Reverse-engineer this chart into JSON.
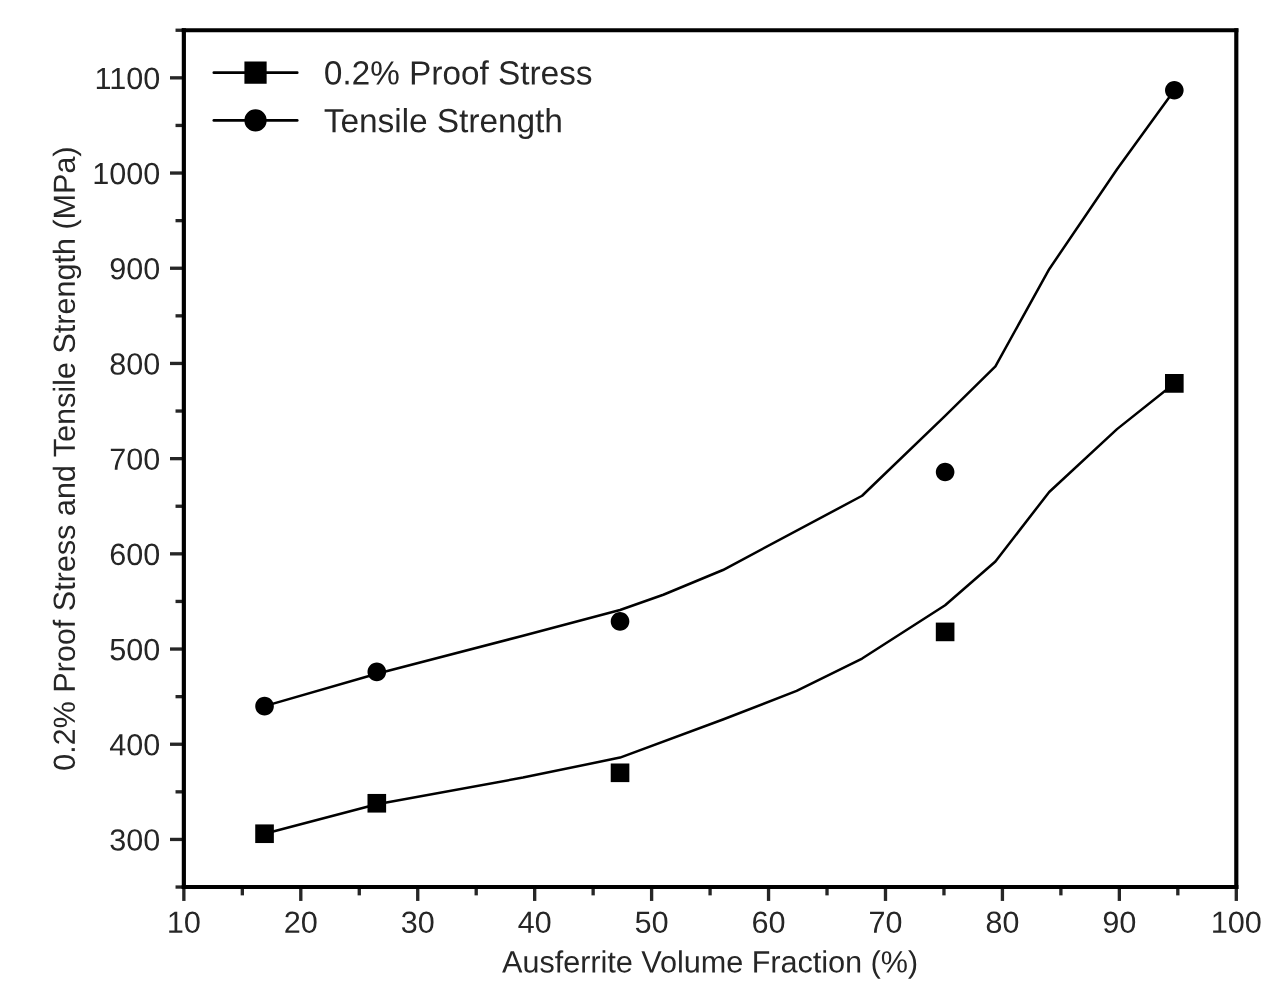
{
  "chart_data": {
    "type": "scatter",
    "xlabel": "Ausferrite Volume Fraction (%)",
    "ylabel": "0.2% Proof Stress and Tensile Strength (MPa)",
    "xlim": [
      10,
      100
    ],
    "xticks": [
      10,
      20,
      30,
      40,
      50,
      60,
      70,
      80,
      90,
      100
    ],
    "ylim": [
      250,
      1150
    ],
    "yticks": [
      300,
      400,
      500,
      600,
      700,
      800,
      900,
      1000,
      1100
    ],
    "grid": false,
    "legend": "top left",
    "series": [
      {
        "name": "0.2% Proof Stress",
        "marker": "square",
        "color": "#000000",
        "x": [
          16.9,
          26.5,
          47.3,
          75.1,
          94.7
        ],
        "values": [
          306,
          338,
          370,
          518,
          779
        ]
      },
      {
        "name": "Tensile Strength",
        "marker": "circle",
        "color": "#000000",
        "x": [
          16.9,
          26.5,
          47.3,
          75.1,
          94.7
        ],
        "values": [
          440,
          476,
          529,
          686,
          1087
        ]
      },
      {
        "type": "line",
        "marker": "none",
        "line_style": "solid",
        "color": "#000000",
        "x": [
          16.9,
          26.5,
          39.0,
          47.3,
          56.1,
          62.4,
          68.0,
          75.1,
          79.4,
          84.0,
          89.8,
          94.7
        ],
        "values": [
          306,
          337,
          365,
          386,
          426,
          456,
          490,
          546,
          592,
          665,
          731,
          779
        ]
      },
      {
        "type": "line",
        "marker": "none",
        "line_style": "solid",
        "color": "#000000",
        "x": [
          16.9,
          26.5,
          39.0,
          47.3,
          51.0,
          56.1,
          68.0,
          75.1,
          79.4,
          84.0,
          89.8,
          94.7
        ],
        "values": [
          440,
          474,
          514,
          541,
          557,
          583,
          661,
          745,
          797,
          899,
          1004,
          1087
        ]
      }
    ]
  }
}
